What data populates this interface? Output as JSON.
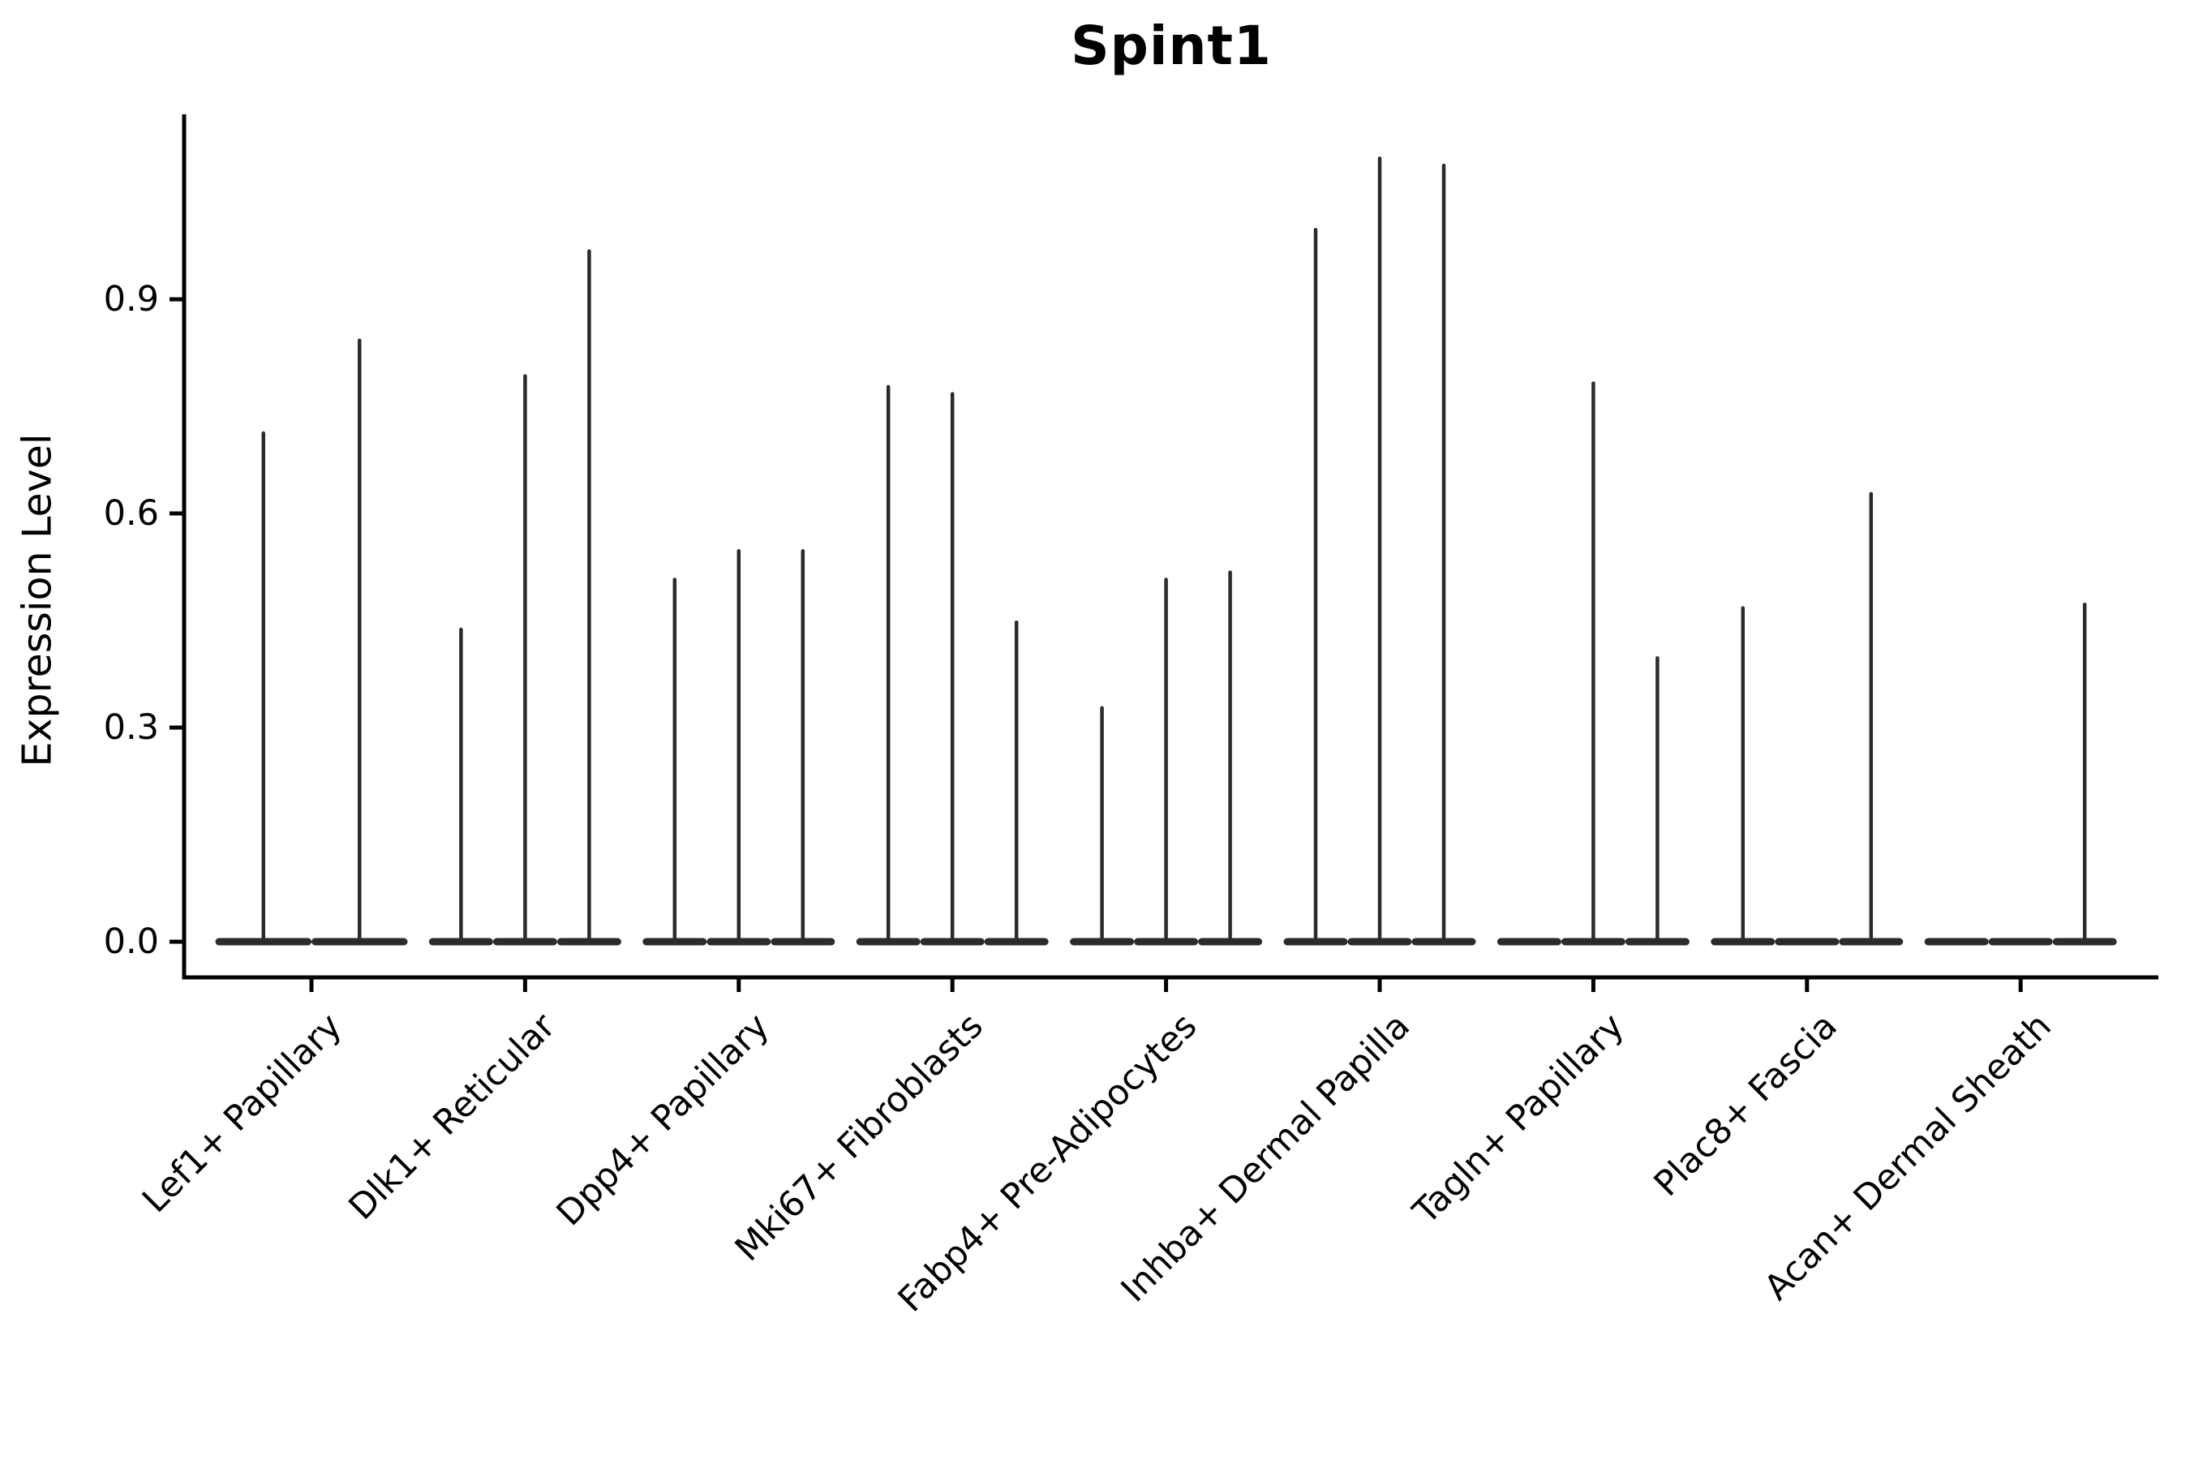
{
  "chart_data": {
    "type": "violin",
    "title": "Spint1",
    "ylabel": "Expression Level",
    "xlabel": "",
    "grid": false,
    "legend": "none",
    "ylim": [
      -0.05,
      1.16
    ],
    "yticks": [
      {
        "label": "0.0",
        "value": 0.0
      },
      {
        "label": "0.3",
        "value": 0.3
      },
      {
        "label": "0.6",
        "value": 0.6
      },
      {
        "label": "0.9",
        "value": 0.9
      }
    ],
    "categories": [
      "Lef1+ Papillary",
      "Dlk1+ Reticular",
      "Dpp4+ Papillary",
      "Mki67+ Fibroblasts",
      "Fabp4+ Pre-Adipocytes",
      "Inhba+ Dermal Papilla",
      "Tagln+ Papillary",
      "Plac8+ Fascia",
      "Acan+ Dermal Sheath"
    ],
    "groups": [
      {
        "label": "Lef1+ Papillary",
        "violin_max_expression": [
          0.715,
          0.845
        ]
      },
      {
        "label": "Dlk1+ Reticular",
        "violin_max_expression": [
          0.44,
          0.795,
          0.97
        ]
      },
      {
        "label": "Dpp4+ Papillary",
        "violin_max_expression": [
          0.51,
          0.55,
          0.55
        ]
      },
      {
        "label": "Mki67+ Fibroblasts",
        "violin_max_expression": [
          0.78,
          0.77,
          0.45
        ]
      },
      {
        "label": "Fabp4+ Pre-Adipocytes",
        "violin_max_expression": [
          0.33,
          0.51,
          0.52
        ]
      },
      {
        "label": "Inhba+ Dermal Papilla",
        "violin_max_expression": [
          1.0,
          1.1,
          1.09
        ]
      },
      {
        "label": "Tagln+ Papillary",
        "violin_max_expression": [
          0.0,
          0.785,
          0.4
        ]
      },
      {
        "label": "Plac8+ Fascia",
        "violin_max_expression": [
          0.47,
          0.0,
          0.63
        ]
      },
      {
        "label": "Acan+ Dermal Sheath",
        "violin_max_expression": [
          0.0,
          0.0,
          0.475
        ]
      }
    ],
    "colors": {
      "violin": "#2b2b2b",
      "axis": "#000000",
      "text": "#000000",
      "background": "#ffffff"
    }
  }
}
